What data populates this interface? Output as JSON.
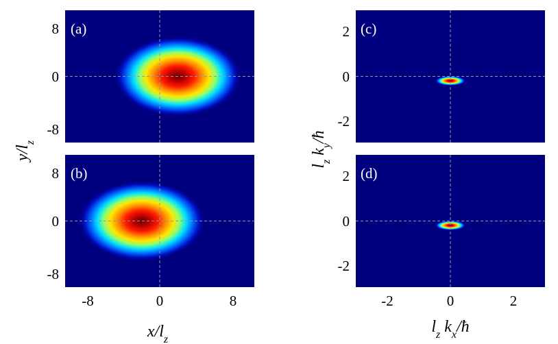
{
  "chart_data": [
    {
      "type": "heatmap",
      "panel": "(a)",
      "xlim": [
        -10.5,
        10.5
      ],
      "ylim": [
        -10.5,
        10.5
      ],
      "xticks": [],
      "yticks": [
        "8",
        "0",
        "-8"
      ],
      "peak": {
        "x": 2.0,
        "y": 0.0
      },
      "sigma": {
        "x": 3.2,
        "y": 2.9
      },
      "colormap": "jet",
      "crosshair": true,
      "background": "#00007f"
    },
    {
      "type": "heatmap",
      "panel": "(b)",
      "xlim": [
        -10.5,
        10.5
      ],
      "ylim": [
        -10.5,
        10.5
      ],
      "xticks": [
        "-8",
        "0",
        "8"
      ],
      "yticks": [
        "8",
        "0",
        "-8"
      ],
      "peak": {
        "x": -2.0,
        "y": 0.0
      },
      "sigma": {
        "x": 3.2,
        "y": 2.9
      },
      "colormap": "jet",
      "crosshair": true,
      "background": "#00007f"
    },
    {
      "type": "heatmap",
      "panel": "(c)",
      "xlim": [
        -3,
        3
      ],
      "ylim": [
        -3,
        3
      ],
      "xticks": [],
      "yticks": [
        "2",
        "0",
        "-2"
      ],
      "peak": {
        "x": 0.0,
        "y": -0.2
      },
      "sigma": {
        "x": 0.22,
        "y": 0.1
      },
      "colormap": "jet",
      "crosshair": true,
      "background": "#00007f"
    },
    {
      "type": "heatmap",
      "panel": "(d)",
      "xlim": [
        -3,
        3
      ],
      "ylim": [
        -3,
        3
      ],
      "xticks": [
        "-2",
        "0",
        "2"
      ],
      "yticks": [
        "2",
        "0",
        "-2"
      ],
      "peak": {
        "x": 0.0,
        "y": -0.2
      },
      "sigma": {
        "x": 0.22,
        "y": 0.1
      },
      "colormap": "jet",
      "crosshair": true,
      "background": "#00007f"
    }
  ],
  "labels": {
    "left_ylabel_main": "y/l",
    "left_ylabel_sub": "z",
    "left_xlabel_main": "x/l",
    "left_xlabel_sub": "z",
    "right_ylabel_l": "l",
    "right_ylabel_z": "z",
    "right_ylabel_k": " k",
    "right_ylabel_y": "y",
    "right_ylabel_hbar": "/ħ",
    "right_xlabel_l": "l",
    "right_xlabel_z": "z",
    "right_xlabel_k": " k",
    "right_xlabel_x": "x",
    "right_xlabel_hbar": "/ħ"
  }
}
